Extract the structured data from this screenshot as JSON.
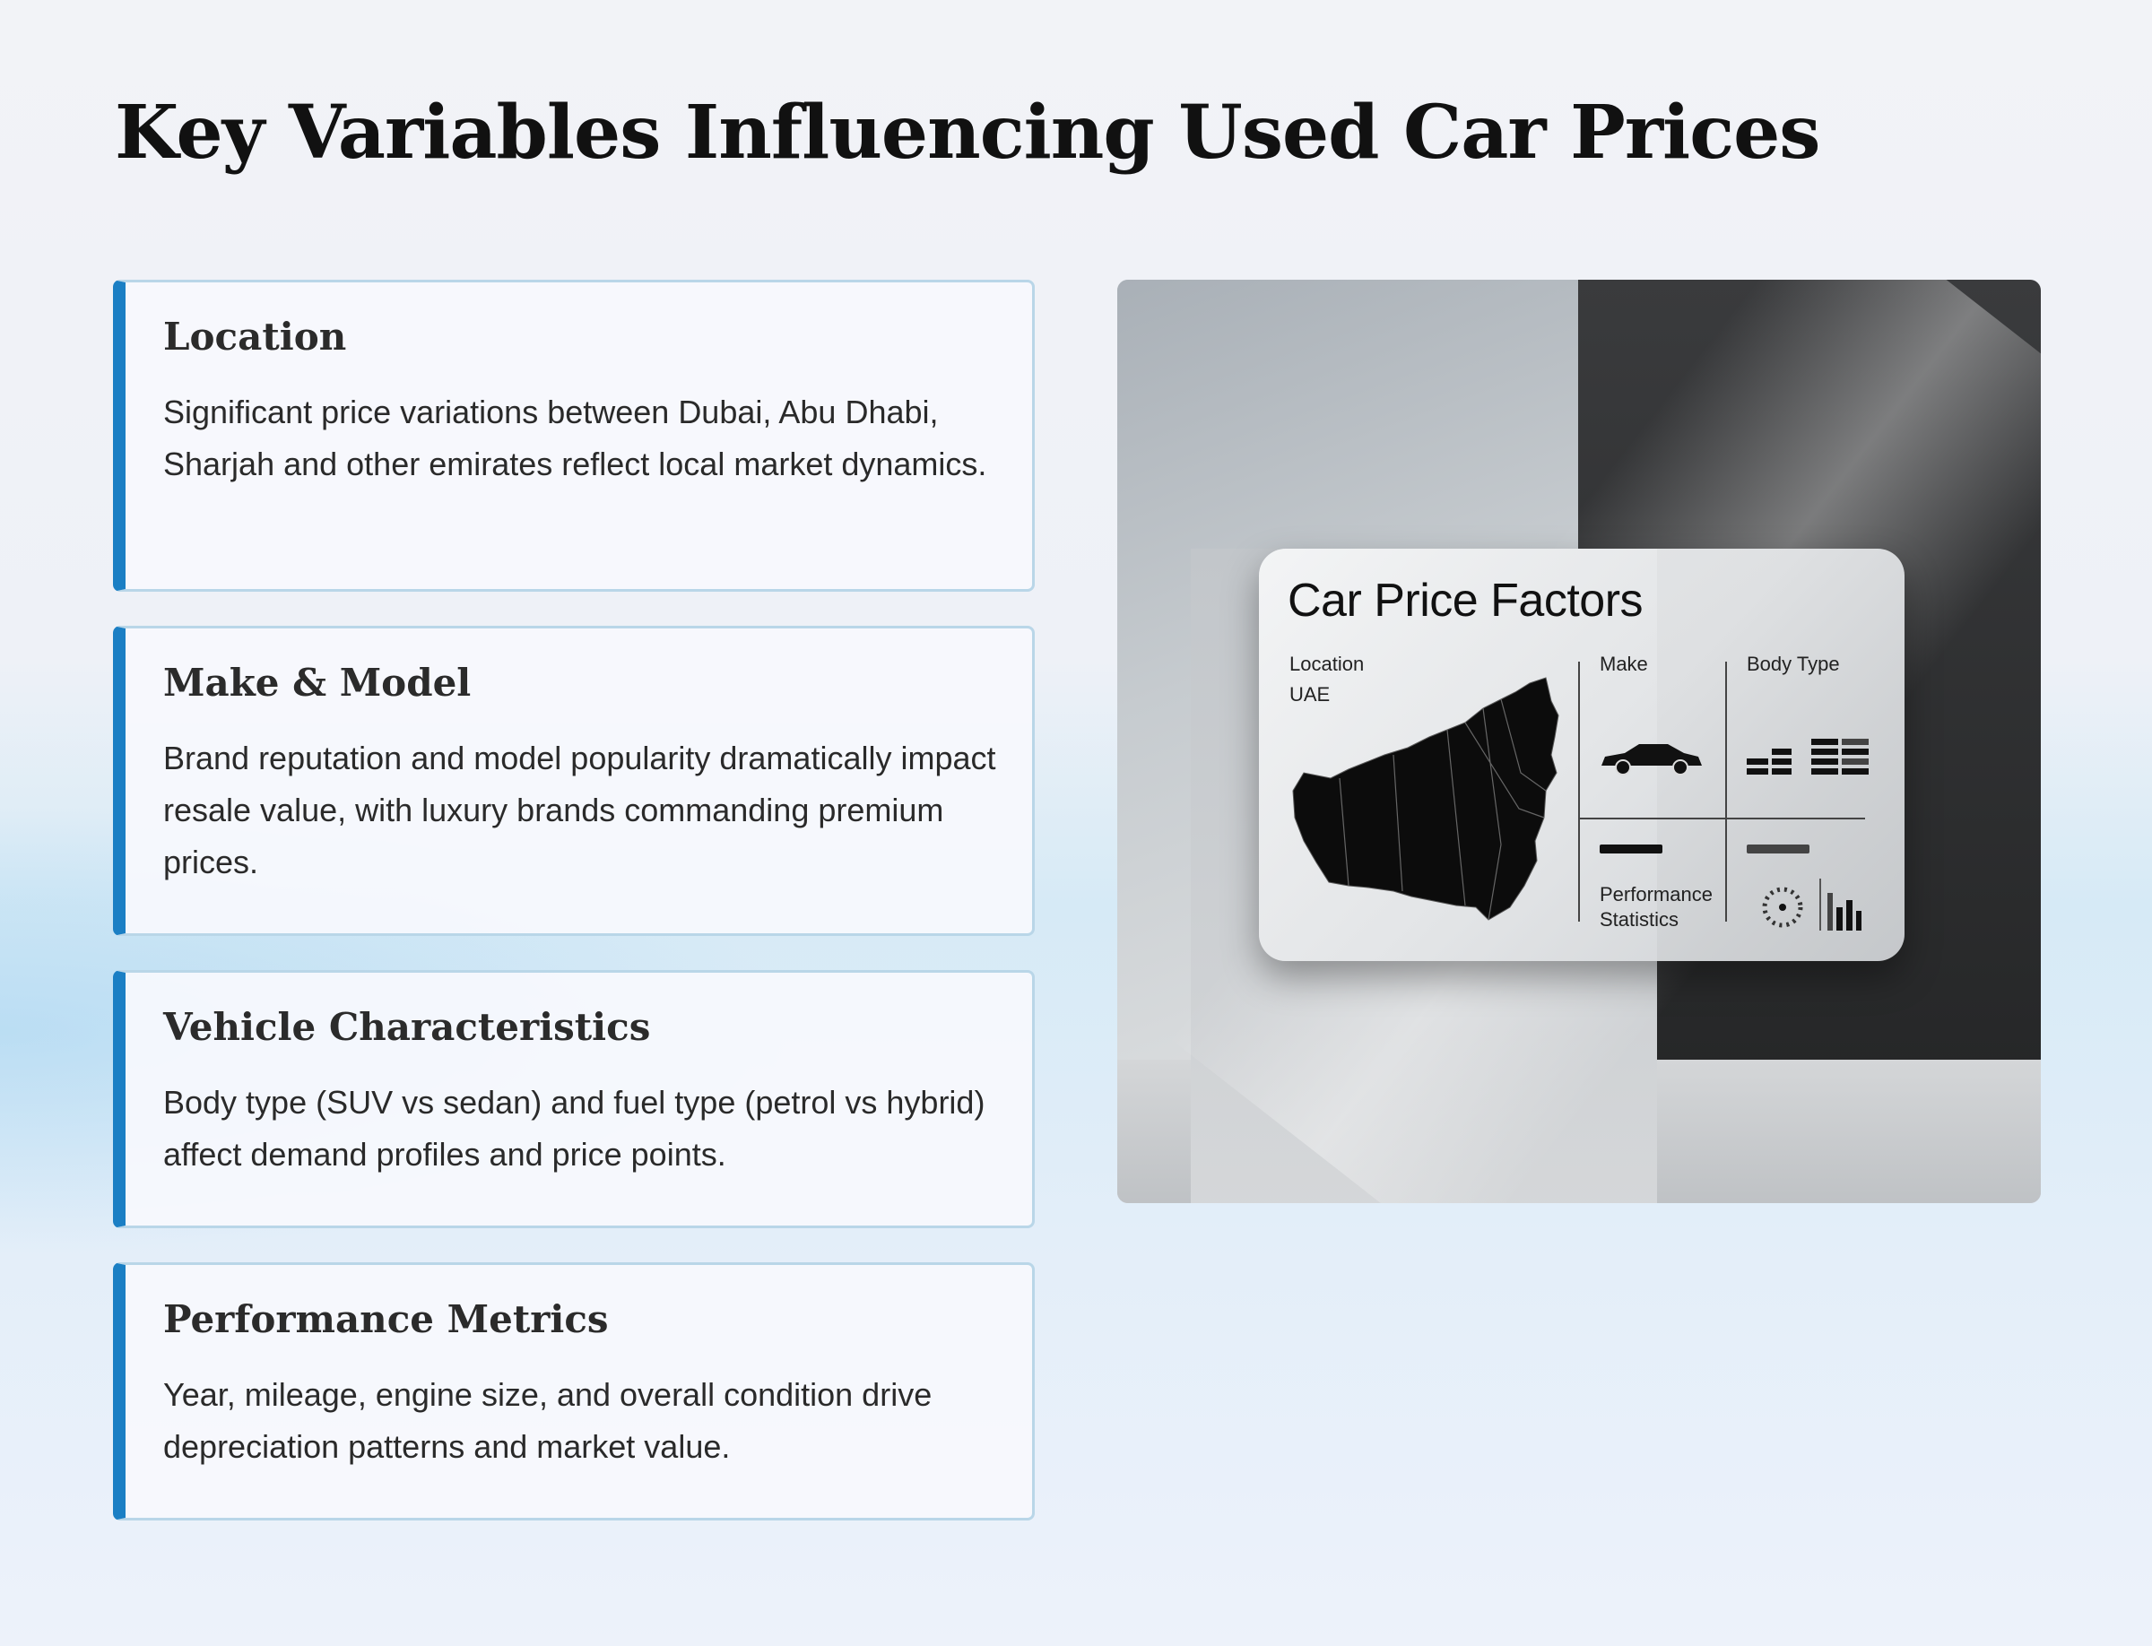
{
  "title": "Key Variables Influencing Used Car Prices",
  "cards": [
    {
      "title": "Location",
      "body": "Significant price variations between Dubai, Abu Dhabi, Sharjah and other emirates reflect local market dynamics."
    },
    {
      "title": "Make & Model",
      "body": "Brand reputation and model popularity dramatically impact resale value, with luxury brands commanding premium prices."
    },
    {
      "title": "Vehicle Characteristics",
      "body": "Body type (SUV vs sedan) and fuel type (petrol vs hybrid) affect demand profiles and price points."
    },
    {
      "title": "Performance Metrics",
      "body": "Year, mileage, engine size, and overall condition drive depreciation patterns and market value."
    }
  ],
  "image": {
    "panel_title": "Car Price Factors",
    "location_label": "Location",
    "location_sub": "UAE",
    "make_label": "Make",
    "body_type_label": "Body Type",
    "performance_label": "Performance",
    "statistics_label": "Statistics"
  },
  "colors": {
    "accent": "#1b7fc4",
    "card_border": "#b9d6e8"
  }
}
